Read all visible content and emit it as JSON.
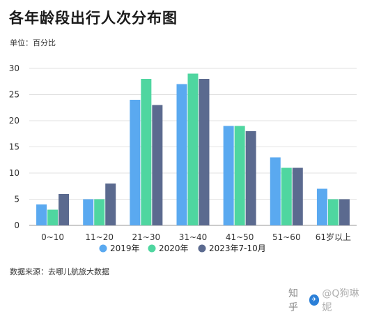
{
  "title": "各年龄段出行人次分布图",
  "unit": "单位：百分比",
  "source": "数据来源：去哪儿航旅大数据",
  "watermark": {
    "zhihu": "知乎",
    "user": "@Q狗琳妮"
  },
  "colors": {
    "s2019": "#5aa9f0",
    "s2020": "#4fd6a0",
    "s2023": "#5b6a8f"
  },
  "chart_data": {
    "type": "bar",
    "categories": [
      "0~10",
      "11~20",
      "21~30",
      "31~40",
      "41~50",
      "51~60",
      "61岁以上"
    ],
    "series": [
      {
        "name": "2019年",
        "values": [
          4,
          5,
          24,
          27,
          19,
          13,
          7
        ]
      },
      {
        "name": "2020年",
        "values": [
          3,
          5,
          28,
          29,
          19,
          11,
          5
        ]
      },
      {
        "name": "2023年7-10月",
        "values": [
          6,
          8,
          23,
          28,
          18,
          11,
          5
        ]
      }
    ],
    "ylim": [
      0,
      30
    ],
    "yticks": [
      0,
      5,
      10,
      15,
      20,
      25,
      30
    ],
    "grid": true,
    "legend_position": "bottom"
  }
}
